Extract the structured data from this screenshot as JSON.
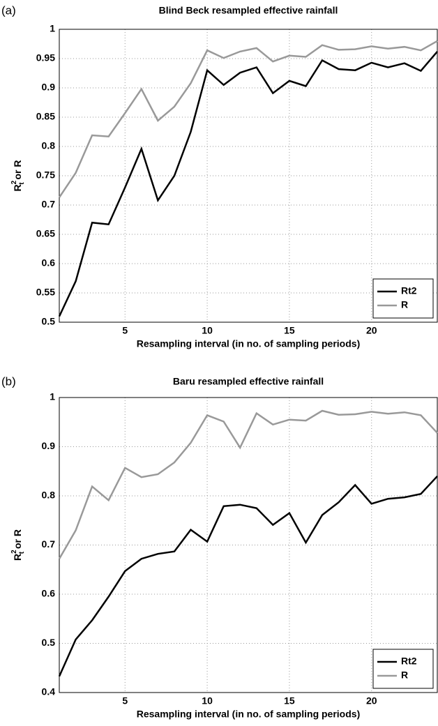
{
  "chart_data": [
    {
      "type": "line",
      "panel_label": "(a)",
      "title": "Blind Beck resampled effective rainfall",
      "xlabel": "Resampling interval (in no. of sampling periods)",
      "ylabel": {
        "base": "R",
        "sup": "2",
        "sub": "t",
        "rest": " or R"
      },
      "x": [
        1,
        2,
        3,
        4,
        5,
        6,
        7,
        8,
        9,
        10,
        11,
        12,
        13,
        14,
        15,
        16,
        17,
        18,
        19,
        20,
        21,
        22,
        23,
        24
      ],
      "series": [
        {
          "name": "Rt2",
          "color": "#000000",
          "values": [
            0.51,
            0.57,
            0.67,
            0.667,
            0.73,
            0.796,
            0.708,
            0.75,
            0.825,
            0.93,
            0.905,
            0.926,
            0.935,
            0.891,
            0.912,
            0.903,
            0.947,
            0.932,
            0.93,
            0.943,
            0.935,
            0.942,
            0.929,
            0.962
          ]
        },
        {
          "name": "R",
          "color": "#999999",
          "values": [
            0.713,
            0.755,
            0.819,
            0.817,
            0.857,
            0.898,
            0.844,
            0.868,
            0.908,
            0.964,
            0.951,
            0.962,
            0.968,
            0.945,
            0.955,
            0.953,
            0.973,
            0.965,
            0.966,
            0.971,
            0.967,
            0.97,
            0.964,
            0.98
          ]
        }
      ],
      "xlim": [
        1,
        24
      ],
      "xticks": [
        5,
        10,
        15,
        20
      ],
      "ylim": [
        0.5,
        1
      ],
      "yticks": [
        0.5,
        0.55,
        0.6,
        0.65,
        0.7,
        0.75,
        0.8,
        0.85,
        0.9,
        0.95,
        1
      ],
      "grid": true,
      "legend": "lower right"
    },
    {
      "type": "line",
      "panel_label": "(b)",
      "title": "Baru resampled effective rainfall",
      "xlabel": "Resampling interval (in no. of sampling periods)",
      "ylabel": {
        "base": "R",
        "sup": "2",
        "sub": "t",
        "rest": " or R"
      },
      "x": [
        1,
        2,
        3,
        4,
        5,
        6,
        7,
        8,
        9,
        10,
        11,
        12,
        13,
        14,
        15,
        16,
        17,
        18,
        19,
        20,
        21,
        22,
        23,
        24
      ],
      "series": [
        {
          "name": "Rt2",
          "color": "#000000",
          "values": [
            0.433,
            0.508,
            0.547,
            0.595,
            0.647,
            0.672,
            0.682,
            0.687,
            0.731,
            0.707,
            0.779,
            0.782,
            0.775,
            0.741,
            0.765,
            0.705,
            0.761,
            0.787,
            0.822,
            0.784,
            0.794,
            0.797,
            0.804,
            0.84
          ]
        },
        {
          "name": "R",
          "color": "#999999",
          "values": [
            0.672,
            0.73,
            0.819,
            0.791,
            0.857,
            0.838,
            0.844,
            0.868,
            0.908,
            0.964,
            0.951,
            0.898,
            0.968,
            0.945,
            0.955,
            0.953,
            0.973,
            0.965,
            0.966,
            0.971,
            0.967,
            0.97,
            0.964,
            0.928
          ]
        }
      ],
      "xlim": [
        1,
        24
      ],
      "xticks": [
        5,
        10,
        15,
        20
      ],
      "ylim": [
        0.4,
        1
      ],
      "yticks": [
        0.4,
        0.5,
        0.6,
        0.7,
        0.8,
        0.9,
        1
      ],
      "grid": true,
      "legend": "lower right"
    }
  ]
}
